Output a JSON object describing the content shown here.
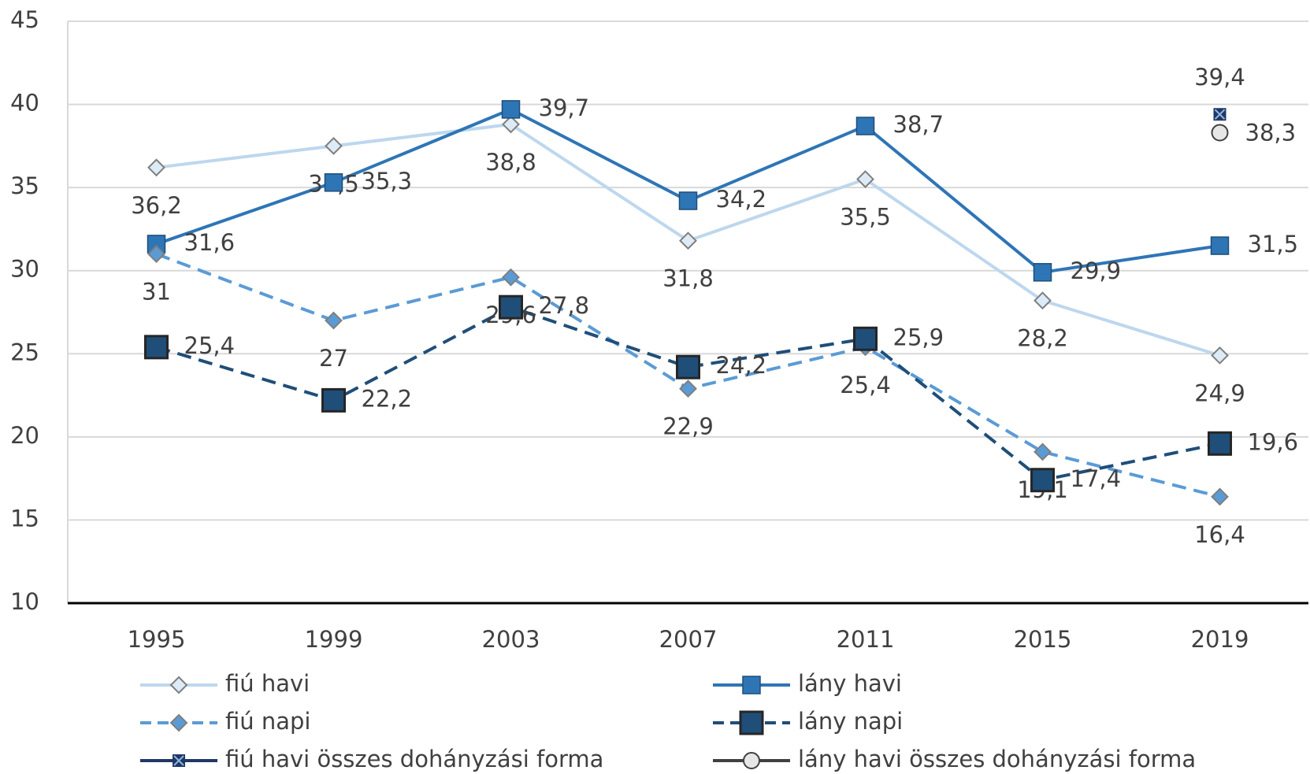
{
  "chart_data": {
    "type": "line",
    "categories": [
      "1995",
      "1999",
      "2003",
      "2007",
      "2011",
      "2015",
      "2019"
    ],
    "ylim": [
      10,
      45
    ],
    "yticks": [
      10,
      15,
      20,
      25,
      30,
      35,
      40,
      45
    ],
    "grid": true,
    "series": [
      {
        "name": "fiú havi",
        "color": "#bdd7ee",
        "marker": "diamond",
        "line_style": "solid",
        "values": [
          36.2,
          37.5,
          38.8,
          31.8,
          35.5,
          28.2,
          24.9
        ],
        "value_labels": [
          "36,2",
          "37,5",
          "38,8",
          "31,8",
          "35,5",
          "28,2",
          "24,9"
        ]
      },
      {
        "name": "lány havi",
        "color": "#2e75b6",
        "marker": "square",
        "line_style": "solid",
        "values": [
          31.6,
          35.3,
          39.7,
          34.2,
          38.7,
          29.9,
          31.5
        ],
        "value_labels": [
          "31,6",
          "35,3",
          "39,7",
          "34,2",
          "38,7",
          "29,9",
          "31,5"
        ]
      },
      {
        "name": "fiú napi",
        "color": "#5b9bd5",
        "marker": "diamond",
        "line_style": "dashed",
        "values": [
          31,
          27,
          29.6,
          22.9,
          25.4,
          19.1,
          16.4
        ],
        "value_labels": [
          "31",
          "27",
          "29,6",
          "22,9",
          "25,4",
          "19,1",
          "16,4"
        ]
      },
      {
        "name": "lány napi",
        "color": "#1f4e79",
        "marker": "square",
        "line_style": "dashed",
        "values": [
          25.4,
          22.2,
          27.8,
          24.2,
          25.9,
          17.4,
          19.6
        ],
        "value_labels": [
          "25,4",
          "22,2",
          "27,8",
          "24,2",
          "25,9",
          "17,4",
          "19,6"
        ]
      },
      {
        "name": "fiú havi összes dohányzási forma",
        "color": "#203864",
        "marker": "star",
        "line_style": "solid",
        "values": [
          null,
          null,
          null,
          null,
          null,
          null,
          39.4
        ],
        "value_labels": [
          null,
          null,
          null,
          null,
          null,
          null,
          "39,4"
        ]
      },
      {
        "name": "lány havi összes dohányzási forma",
        "color": "#404040",
        "marker": "circle",
        "line_style": "solid",
        "values": [
          null,
          null,
          null,
          null,
          null,
          null,
          38.3
        ],
        "value_labels": [
          null,
          null,
          null,
          null,
          null,
          null,
          "38,3"
        ]
      }
    ]
  }
}
